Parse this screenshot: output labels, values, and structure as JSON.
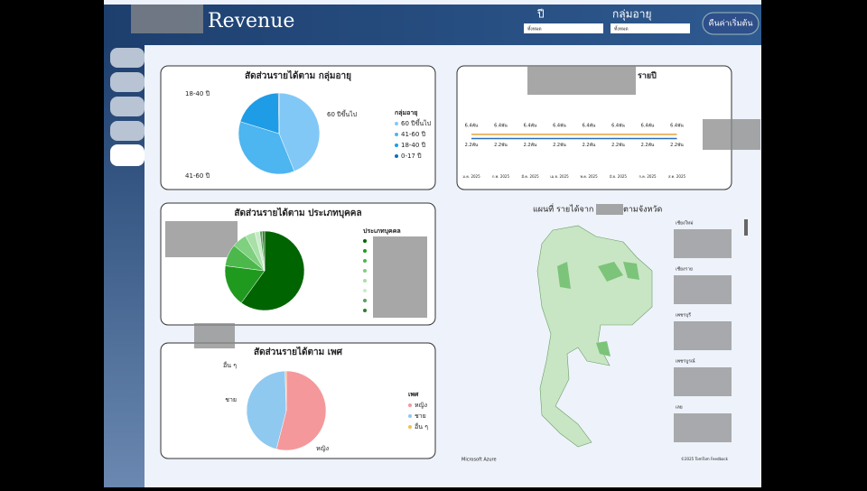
{
  "header": {
    "title": "Revenue"
  },
  "filters": [
    {
      "label": "ปี",
      "value": "ทั้งหมด"
    },
    {
      "label": "กลุ่มอายุ",
      "value": "ทั้งหมด"
    }
  ],
  "reset_button": "คืนค่าเริ่มต้น",
  "chart_data": [
    {
      "type": "pie",
      "title": "สัดส่วนรายได้ตาม กลุ่มอายุ",
      "legend_title": "กลุ่มอายุ",
      "categories": [
        "60 ปีขึ้นไป",
        "41-60 ปี",
        "18-40 ปี",
        "0-17 ปี"
      ],
      "values": [
        44,
        36,
        20,
        0.3
      ],
      "colors": [
        "#82c8f6",
        "#4db5f0",
        "#1e9ce6",
        "#0a6fb8"
      ]
    },
    {
      "type": "pie",
      "title": "สัดส่วนรายได้ตาม ประเภทบุคคล",
      "legend_title": "ประเภทบุคคล",
      "categories": [
        null,
        null,
        null,
        null,
        null,
        null,
        null,
        null
      ],
      "values": [
        60,
        17,
        9,
        6,
        4,
        2,
        1,
        1
      ],
      "colors": [
        "#006400",
        "#1f9a1f",
        "#4cb84c",
        "#7fd07f",
        "#a8e0a8",
        "#c8ecc8",
        "#5aa05a",
        "#2e7d2e"
      ]
    },
    {
      "type": "pie",
      "title": "สัดส่วนรายได้ตาม เพศ",
      "legend_title": "เพศ",
      "categories": [
        "หญิง",
        "ชาย",
        "อื่น ๆ"
      ],
      "values": [
        54,
        45.5,
        0.5
      ],
      "colors": [
        "#f4989c",
        "#8fc9f0",
        "#f2c14e"
      ]
    },
    {
      "type": "line",
      "title": "รายปี",
      "categories": [
        "ม.ค. 2025",
        "ก.พ. 2025",
        "มี.ค. 2025",
        "เม.ย. 2025",
        "พ.ค. 2025",
        "มิ.ย. 2025",
        "ก.ค. 2025",
        "ส.ค. 2025"
      ],
      "ylim": [
        -10000,
        24000
      ],
      "y2lim": [
        -2000,
        8000
      ],
      "series": [
        {
          "color": "#e8a33c",
          "values": [
            6400,
            6400,
            6400,
            6400,
            6400,
            6400,
            6400,
            6400
          ],
          "value_labels": [
            "6.4พัน",
            "6.4พัน",
            "6.4พัน",
            "6.4พัน",
            "6.4พัน",
            "6.4พัน",
            "6.4พัน",
            "6.4พัน"
          ]
        },
        {
          "color": "#2a6ebb",
          "axis": "y2",
          "values": [
            2200,
            2200,
            2200,
            2200,
            2200,
            2200,
            2200,
            2200
          ],
          "value_labels": [
            "2.2พัน",
            "2.2พัน",
            "2.2พัน",
            "2.2พัน",
            "2.2พัน",
            "2.2พัน",
            "2.2พัน",
            "2.2พัน"
          ]
        }
      ]
    }
  ],
  "map": {
    "title_start": "แผนที่ รายได้จาก",
    "title_end": "ตามจังหวัด",
    "provinces": [
      "เชียงใหม่",
      "เชียงราย",
      "เพชรบุรี",
      "เพชรบูรณ์",
      "เลย"
    ],
    "provider": "Microsoft Azure",
    "attribution": "©2025 TomTom Feedback"
  }
}
